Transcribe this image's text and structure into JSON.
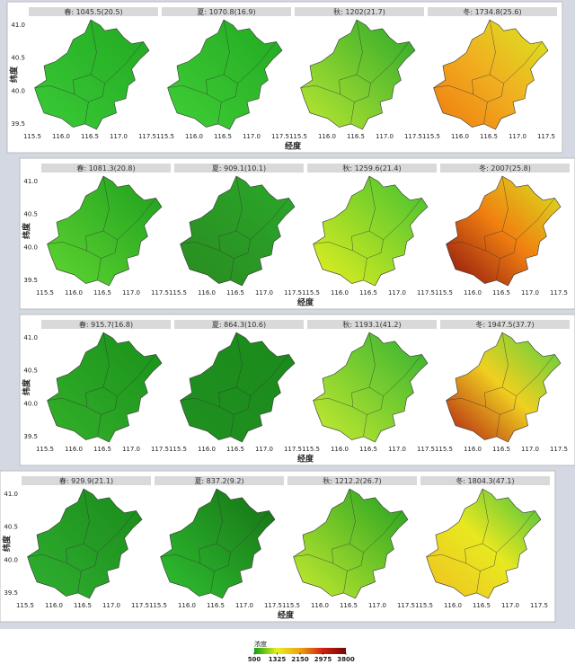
{
  "rows": [
    {
      "panels": [
        {
          "title": "春: 1045.5(20.5)",
          "colors": [
            "#3acb36",
            "#22a822"
          ]
        },
        {
          "title": "夏: 1070.8(16.9)",
          "colors": [
            "#40cf36",
            "#22a822"
          ]
        },
        {
          "title": "秋: 1202(21.7)",
          "colors": [
            "#bce832",
            "#2aa82a"
          ]
        },
        {
          "title": "冬: 1734.8(25.6)",
          "colors": [
            "#f07a10",
            "#f0b020",
            "#d8e820"
          ]
        }
      ],
      "xlabel": "经度",
      "ylabel": "纬度"
    },
    {
      "panels": [
        {
          "title": "春: 1081.3(20.8)",
          "colors": [
            "#5ed630",
            "#1f9e1f"
          ]
        },
        {
          "title": "夏: 909.1(10.1)",
          "colors": [
            "#2a8c20",
            "#2aa82a"
          ]
        },
        {
          "title": "秋: 1259.6(21.4)",
          "colors": [
            "#e6f020",
            "#40c030"
          ]
        },
        {
          "title": "冬: 2007(25.8)",
          "colors": [
            "#8b1010",
            "#f08010",
            "#d8e820"
          ]
        }
      ],
      "xlabel": "经度",
      "ylabel": "纬度"
    },
    {
      "panels": [
        {
          "title": "春: 915.7(16.8)",
          "colors": [
            "#33b02a",
            "#1a901a"
          ]
        },
        {
          "title": "夏: 864.3(10.6)",
          "colors": [
            "#209020",
            "#1a8a1a"
          ]
        },
        {
          "title": "秋: 1193.1(41.2)",
          "colors": [
            "#c8ec30",
            "#30b030"
          ]
        },
        {
          "title": "冬: 1947.5(37.7)",
          "colors": [
            "#b01a10",
            "#f0d020",
            "#50d040"
          ]
        }
      ],
      "xlabel": "经度",
      "ylabel": "纬度"
    },
    {
      "panels": [
        {
          "title": "春: 929.9(21.1)",
          "colors": [
            "#30b030",
            "#1a8a1a"
          ]
        },
        {
          "title": "夏: 837.2(9.2)",
          "colors": [
            "#30c030",
            "#157015"
          ]
        },
        {
          "title": "秋: 1212.2(26.7)",
          "colors": [
            "#c8ec30",
            "#20a020"
          ]
        },
        {
          "title": "冬: 1804.3(47.1)",
          "colors": [
            "#f0c020",
            "#e8e820",
            "#40c040"
          ]
        }
      ],
      "xlabel": "经度",
      "ylabel": "纬度"
    }
  ],
  "xticks": [
    115.5,
    {
      "value": 116,
      "label": "116.0"
    },
    116.5,
    {
      "value": 117,
      "label": "117.0"
    },
    117.5
  ],
  "yticks": [
    39.5,
    {
      "value": 40,
      "label": "40.0"
    },
    40.5,
    {
      "value": 41,
      "label": "41.0"
    }
  ],
  "colorbar": {
    "title": "浓度",
    "ticks": [
      500,
      1325,
      2150,
      2975,
      3800
    ],
    "colors": [
      "#10a010",
      "#e8f020",
      "#f0a010",
      "#d02010",
      "#700808"
    ]
  }
}
